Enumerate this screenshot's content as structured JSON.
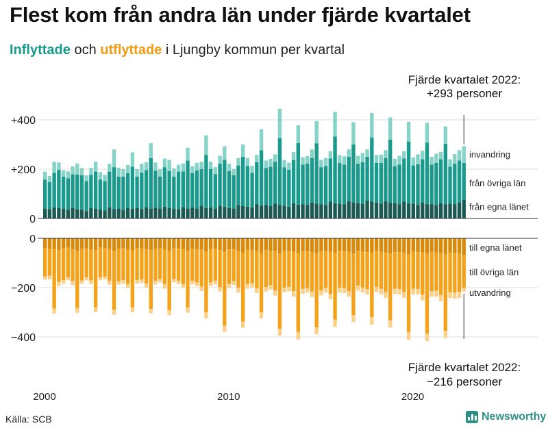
{
  "title": "Flest kom från andra län under fjärde kvartalet",
  "subtitle": {
    "inflow": "Inflyttade",
    "and": "och",
    "outflow": "utflyttade",
    "rest": "i Ljungby kommun per kvartal"
  },
  "source": "Källa: SCB",
  "brand": "Newsworthy",
  "colors": {
    "in_own": "#1a5a52",
    "in_other": "#1a9a8c",
    "immigration": "#86d3c8",
    "out_own": "#d98a0a",
    "out_other": "#f5a21b",
    "emigration": "#fbd08a",
    "axis": "#333333",
    "grid": "#dddddd"
  },
  "annotations": {
    "top_line1": "Fjärde kvartalet 2022:",
    "top_line2": "+293 personer",
    "bottom_line1": "Fjärde kvartalet 2022:",
    "bottom_line2": "−216 personer"
  },
  "chart_data": {
    "type": "bar",
    "stacked": true,
    "diverging": true,
    "title": "Flest kom från andra län under fjärde kvartalet",
    "xlabel": "",
    "ylabel": "",
    "x_ticks": [
      "2000",
      "2010",
      "2020"
    ],
    "y_ticks": [
      "+400",
      "+200",
      "0",
      "0",
      "−200",
      "−400"
    ],
    "ylim_inflow": [
      0,
      450
    ],
    "ylim_outflow": [
      -450,
      0
    ],
    "period_start": "2000 Q1",
    "period_end": "2022 Q4",
    "legend": {
      "inflow": [
        "invandring",
        "från övriga län",
        "från egna länet"
      ],
      "outflow": [
        "till egna länet",
        "till övriga län",
        "utvandring"
      ]
    },
    "series": [
      {
        "name": "från egna länet",
        "values": [
          40,
          38,
          45,
          42,
          40,
          35,
          44,
          38,
          35,
          30,
          42,
          40,
          36,
          32,
          45,
          38,
          40,
          35,
          44,
          40,
          42,
          38,
          46,
          40,
          44,
          40,
          48,
          42,
          40,
          38,
          46,
          40,
          44,
          40,
          50,
          42,
          45,
          40,
          52,
          48,
          42,
          40,
          55,
          50,
          48,
          45,
          58,
          52,
          55,
          50,
          60,
          55,
          52,
          48,
          62,
          56,
          58,
          55,
          65,
          60,
          58,
          55,
          68,
          62,
          60,
          58,
          70,
          65,
          62,
          60,
          72,
          68,
          65,
          60,
          70,
          65,
          62,
          58,
          68,
          62,
          60,
          55,
          65,
          58,
          58,
          55,
          62,
          58,
          60,
          58,
          65,
          75
        ]
      },
      {
        "name": "från övriga län",
        "values": [
          118,
          110,
          140,
          155,
          130,
          128,
          135,
          140,
          140,
          122,
          135,
          150,
          122,
          120,
          145,
          170,
          130,
          135,
          140,
          170,
          128,
          148,
          150,
          205,
          150,
          130,
          160,
          150,
          130,
          152,
          145,
          195,
          140,
          155,
          150,
          215,
          155,
          140,
          170,
          190,
          150,
          135,
          160,
          200,
          165,
          140,
          170,
          225,
          150,
          160,
          170,
          270,
          155,
          150,
          175,
          250,
          160,
          168,
          180,
          245,
          150,
          158,
          175,
          270,
          165,
          160,
          180,
          235,
          160,
          168,
          178,
          260,
          160,
          165,
          175,
          255,
          150,
          160,
          175,
          250,
          155,
          165,
          175,
          250,
          160,
          170,
          178,
          245,
          150,
          165,
          170,
          150
        ]
      },
      {
        "name": "invandring",
        "values": [
          32,
          24,
          45,
          30,
          25,
          28,
          32,
          45,
          30,
          23,
          28,
          40,
          30,
          25,
          32,
          72,
          35,
          30,
          33,
          58,
          30,
          36,
          32,
          60,
          33,
          30,
          35,
          45,
          33,
          28,
          32,
          52,
          28,
          30,
          30,
          80,
          30,
          28,
          32,
          55,
          30,
          26,
          30,
          50,
          32,
          28,
          30,
          85,
          30,
          32,
          30,
          120,
          30,
          28,
          32,
          72,
          30,
          30,
          35,
          90,
          30,
          32,
          30,
          100,
          32,
          34,
          30,
          90,
          32,
          38,
          30,
          100,
          32,
          34,
          32,
          90,
          30,
          36,
          30,
          80,
          32,
          40,
          35,
          80,
          32,
          38,
          30,
          70,
          30,
          38,
          42,
          68
        ]
      },
      {
        "name": "till egna länet",
        "values": [
          -40,
          -42,
          -45,
          -48,
          -40,
          -38,
          -45,
          -50,
          -42,
          -40,
          -46,
          -48,
          -38,
          -40,
          -44,
          -50,
          -42,
          -40,
          -46,
          -50,
          -40,
          -42,
          -44,
          -48,
          -42,
          -40,
          -46,
          -52,
          -40,
          -42,
          -45,
          -50,
          -42,
          -44,
          -46,
          -55,
          -44,
          -42,
          -48,
          -55,
          -45,
          -44,
          -50,
          -58,
          -46,
          -48,
          -52,
          -60,
          -48,
          -50,
          -52,
          -62,
          -50,
          -52,
          -54,
          -60,
          -50,
          -52,
          -56,
          -62,
          -52,
          -50,
          -55,
          -60,
          -50,
          -52,
          -55,
          -62,
          -52,
          -54,
          -56,
          -60,
          -52,
          -55,
          -58,
          -62,
          -54,
          -56,
          -58,
          -65,
          -55,
          -56,
          -58,
          -62,
          -55,
          -58,
          -60,
          -65,
          -58,
          -60,
          -62,
          -70
        ]
      },
      {
        "name": "till övriga län",
        "values": [
          -115,
          -110,
          -240,
          -128,
          -130,
          -120,
          -128,
          -232,
          -130,
          -118,
          -125,
          -232,
          -120,
          -115,
          -128,
          -240,
          -132,
          -130,
          -140,
          -230,
          -130,
          -125,
          -140,
          -238,
          -130,
          -125,
          -140,
          -240,
          -125,
          -130,
          -140,
          -230,
          -130,
          -135,
          -150,
          -245,
          -135,
          -130,
          -150,
          -300,
          -140,
          -130,
          -150,
          -280,
          -140,
          -135,
          -150,
          -240,
          -150,
          -140,
          -160,
          -305,
          -150,
          -145,
          -160,
          -320,
          -155,
          -150,
          -160,
          -300,
          -160,
          -150,
          -170,
          -270,
          -150,
          -150,
          -160,
          -250,
          -140,
          -145,
          -150,
          -260,
          -145,
          -150,
          -160,
          -270,
          -150,
          -150,
          -160,
          -315,
          -150,
          -150,
          -170,
          -325,
          -160,
          -155,
          -170,
          -310,
          -160,
          -160,
          -155,
          -130
        ]
      },
      {
        "name": "utvandring",
        "values": [
          -12,
          -15,
          -20,
          -18,
          -15,
          -12,
          -18,
          -20,
          -12,
          -12,
          -15,
          -20,
          -12,
          -12,
          -16,
          -20,
          -14,
          -14,
          -16,
          -20,
          -14,
          -14,
          -15,
          -18,
          -15,
          -14,
          -18,
          -20,
          -14,
          -14,
          -16,
          -22,
          -15,
          -15,
          -18,
          -25,
          -15,
          -15,
          -18,
          -25,
          -16,
          -15,
          -20,
          -25,
          -18,
          -16,
          -20,
          -25,
          -18,
          -18,
          -20,
          -28,
          -18,
          -18,
          -22,
          -30,
          -20,
          -18,
          -22,
          -28,
          -20,
          -20,
          -22,
          -30,
          -20,
          -20,
          -22,
          -28,
          -20,
          -20,
          -22,
          -30,
          -20,
          -22,
          -24,
          -30,
          -22,
          -22,
          -24,
          -32,
          -22,
          -22,
          -24,
          -30,
          -22,
          -24,
          -25,
          -30,
          -24,
          -24,
          -25,
          -16
        ]
      }
    ]
  }
}
